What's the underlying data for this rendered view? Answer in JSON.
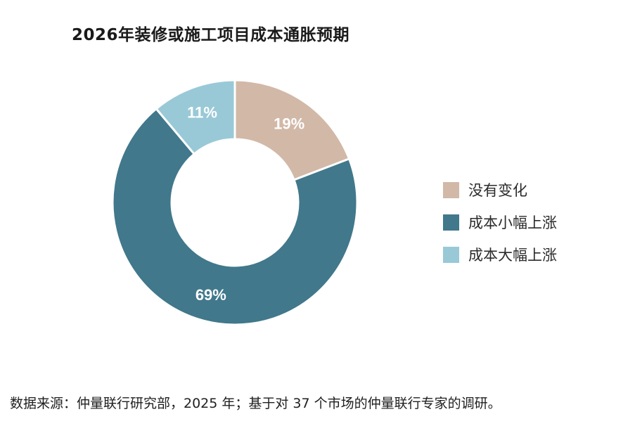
{
  "title": "2026年装修或施工项目成本通胀预期",
  "source": "数据来源：仲量联行研究部，2025 年；基于对 37 个市场的仲量联行专家的调研。",
  "chart_data": {
    "type": "pie",
    "donut": true,
    "title": "2026年装修或施工项目成本通胀预期",
    "categories": [
      "没有变化",
      "成本小幅上涨",
      "成本大幅上涨"
    ],
    "values": [
      19,
      69,
      11
    ],
    "value_labels": [
      "19%",
      "69%",
      "11%"
    ],
    "colors": [
      "#d2b8a7",
      "#41788b",
      "#99c9d7"
    ],
    "legend": [
      "没有变化",
      "成本小幅上涨",
      "成本大幅上涨"
    ],
    "legend_placement": "right",
    "start": "top",
    "direction": "clockwise",
    "label_color": "#ffffff"
  }
}
